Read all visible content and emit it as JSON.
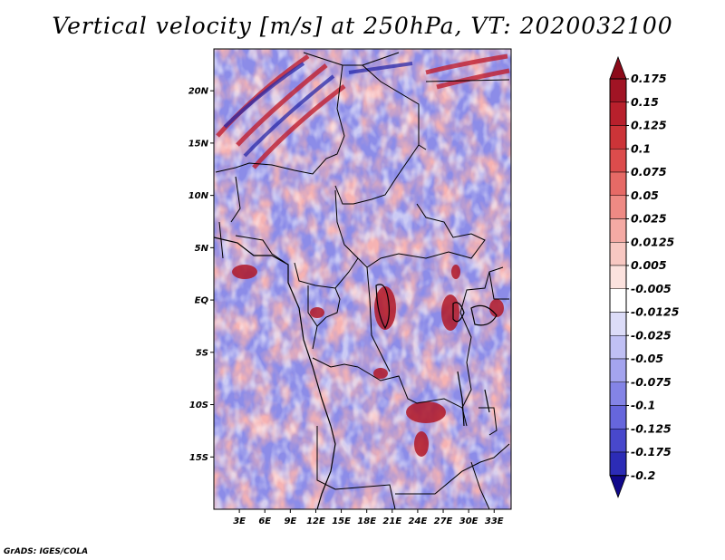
{
  "title": "Vertical velocity [m/s] at 250hPa, VT: 2020032100",
  "footer": "GrADS: IGES/COLA",
  "map": {
    "lon_range": [
      0,
      35
    ],
    "lat_range": [
      -20,
      24
    ],
    "lat_ticks": [
      {
        "lat": 20,
        "label": "20N"
      },
      {
        "lat": 15,
        "label": "15N"
      },
      {
        "lat": 10,
        "label": "10N"
      },
      {
        "lat": 5,
        "label": "5N"
      },
      {
        "lat": 0,
        "label": "EQ"
      },
      {
        "lat": -5,
        "label": "5S"
      },
      {
        "lat": -10,
        "label": "10S"
      },
      {
        "lat": -15,
        "label": "15S"
      }
    ],
    "lon_ticks": [
      {
        "lon": 3,
        "label": "3E"
      },
      {
        "lon": 6,
        "label": "6E"
      },
      {
        "lon": 9,
        "label": "9E"
      },
      {
        "lon": 12,
        "label": "12E"
      },
      {
        "lon": 15,
        "label": "15E"
      },
      {
        "lon": 18,
        "label": "18E"
      },
      {
        "lon": 21,
        "label": "21E"
      },
      {
        "lon": 24,
        "label": "24E"
      },
      {
        "lon": 27,
        "label": "27E"
      },
      {
        "lon": 30,
        "label": "30E"
      },
      {
        "lon": 33,
        "label": "33E"
      }
    ]
  },
  "colorbar": {
    "levels": [
      {
        "label": "0.175",
        "color": "#a01424"
      },
      {
        "label": "0.15",
        "color": "#b8202c"
      },
      {
        "label": "0.125",
        "color": "#cc3438"
      },
      {
        "label": "0.1",
        "color": "#dc4c4c"
      },
      {
        "label": "0.075",
        "color": "#e66a66"
      },
      {
        "label": "0.05",
        "color": "#ee8a84"
      },
      {
        "label": "0.025",
        "color": "#f4aaa4"
      },
      {
        "label": "0.0125",
        "color": "#f8c8c2"
      },
      {
        "label": "0.005",
        "color": "#fce2de"
      },
      {
        "label": "-0.005",
        "color": "#ffffff"
      },
      {
        "label": "-0.0125",
        "color": "#dcdcf8"
      },
      {
        "label": "-0.025",
        "color": "#c0c0f4"
      },
      {
        "label": "-0.05",
        "color": "#a4a4ee"
      },
      {
        "label": "-0.075",
        "color": "#8484e6"
      },
      {
        "label": "-0.1",
        "color": "#6666dc"
      },
      {
        "label": "-0.125",
        "color": "#4848cc"
      },
      {
        "label": "-0.175",
        "color": "#2c2cb6"
      },
      {
        "label": "-0.2",
        "color": "#1a1496"
      }
    ],
    "top_color": "#8c0a1a",
    "bottom_color": "#10088a"
  }
}
